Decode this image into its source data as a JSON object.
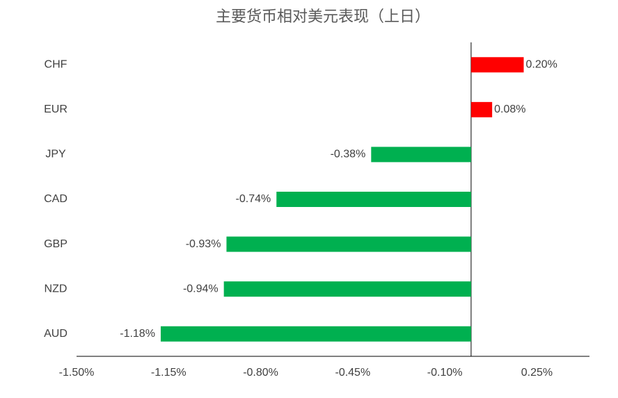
{
  "chart_data": {
    "type": "hbar",
    "title": "主要货币相对美元表现（上日）",
    "categories": [
      "CHF",
      "EUR",
      "JPY",
      "CAD",
      "GBP",
      "NZD",
      "AUD"
    ],
    "values": [
      0.2,
      0.08,
      -0.38,
      -0.74,
      -0.93,
      -0.94,
      -1.18
    ],
    "value_labels": [
      "0.20%",
      "0.08%",
      "-0.38%",
      "-0.74%",
      "-0.93%",
      "-0.94%",
      "-1.18%"
    ],
    "positive_color": "#ff0000",
    "negative_color": "#00b050",
    "xlim": [
      -1.5,
      0.45
    ],
    "xticks": [
      {
        "value": -1.5,
        "label": "-1.50%"
      },
      {
        "value": -1.15,
        "label": "-1.15%"
      },
      {
        "value": -0.8,
        "label": "-0.80%"
      },
      {
        "value": -0.45,
        "label": "-0.45%"
      },
      {
        "value": -0.1,
        "label": "-0.10%"
      },
      {
        "value": 0.25,
        "label": "0.25%"
      }
    ],
    "grid": false
  }
}
